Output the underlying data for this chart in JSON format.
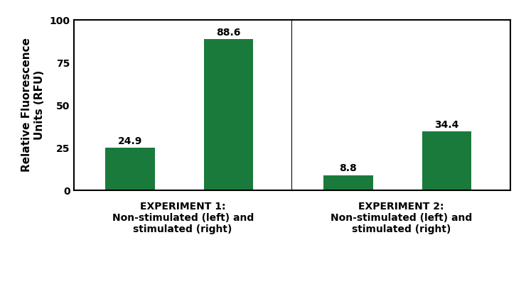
{
  "exp1_values": [
    24.9,
    88.6
  ],
  "exp2_values": [
    8.8,
    34.4
  ],
  "bar_color": "#1a7a3c",
  "bar_width": 0.35,
  "ylim": [
    0,
    100
  ],
  "yticks": [
    0,
    25,
    50,
    75,
    100
  ],
  "ylabel": "Relative Fluorescence\nUnits (RFU)",
  "ylabel_fontsize": 11,
  "label_fontsize": 10,
  "annotation_fontsize": 10,
  "xlabel1_line1": "EXPERIMENT 1:",
  "xlabel1_line2": "Non-stimulated (left) and",
  "xlabel1_line3": "stimulated (right)",
  "xlabel2_line1": "EXPERIMENT 2:",
  "xlabel2_line2": "Non-stimulated (left) and",
  "xlabel2_line3": "stimulated (right)",
  "background_color": "#ffffff",
  "tick_label_fontsize": 10,
  "bar_positions": [
    0.7,
    1.4
  ]
}
